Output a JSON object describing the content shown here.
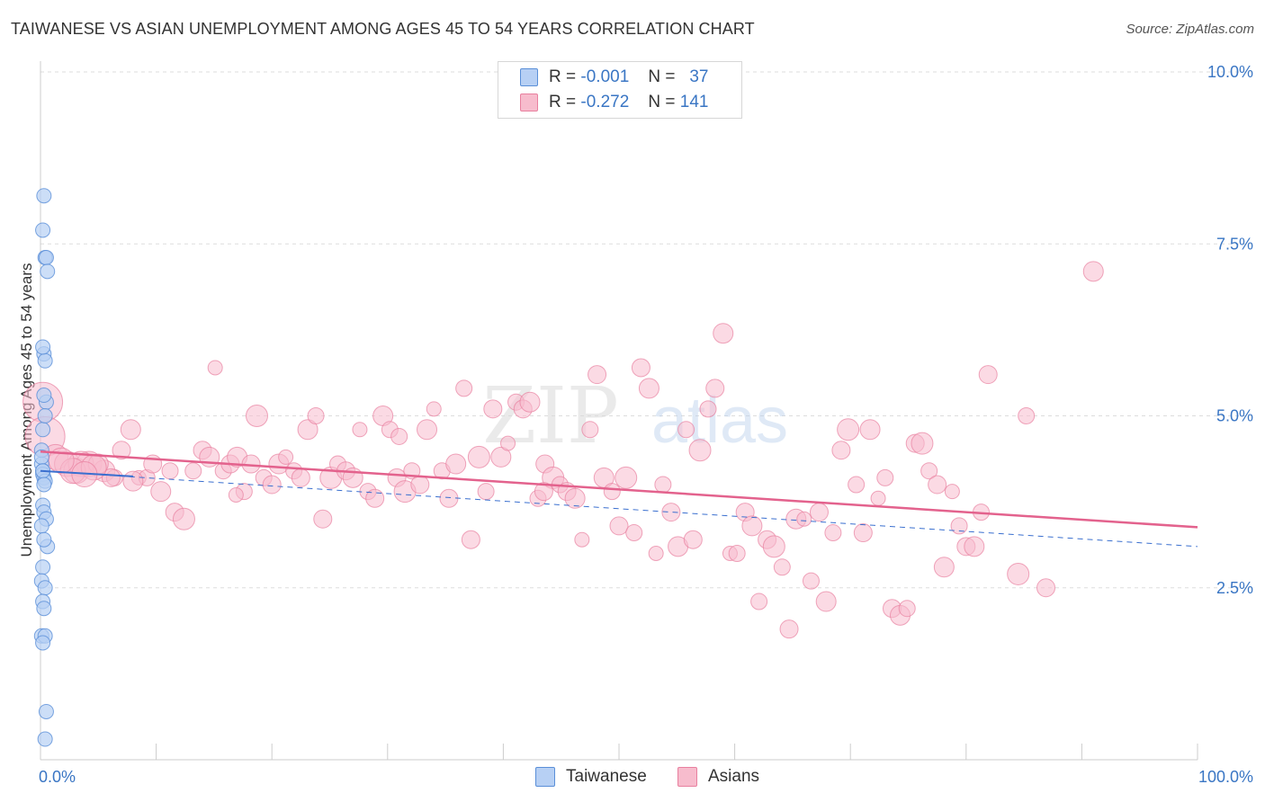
{
  "title": "TAIWANESE VS ASIAN UNEMPLOYMENT AMONG AGES 45 TO 54 YEARS CORRELATION CHART",
  "source": "Source: ZipAtlas.com",
  "watermark": {
    "zip": "ZIP",
    "atlas": "atlas"
  },
  "colors": {
    "taiwanese_fill": "#b7d0f4",
    "taiwanese_stroke": "#5a8fd8",
    "taiwanese_line": "#3a6fcf",
    "asians_fill": "#f7bccd",
    "asians_stroke": "#e8809f",
    "asians_line": "#e3628d",
    "tick_label": "#3a76c4",
    "grid": "#dddddd"
  },
  "legend": {
    "rows": [
      {
        "r_label": "R =",
        "r_value": "-0.001",
        "n_label": "N =",
        "n_value": "37"
      },
      {
        "r_label": "R =",
        "r_value": "-0.272",
        "n_label": "N =",
        "n_value": "141"
      }
    ]
  },
  "chart_data": {
    "type": "scatter",
    "xlabel": "",
    "ylabel": "Unemployment Among Ages 45 to 54 years",
    "xlim": [
      0,
      100
    ],
    "ylim": [
      0,
      10.0
    ],
    "x_tick_labels": [
      "0.0%",
      "100.0%"
    ],
    "y_ticks": [
      2.5,
      5.0,
      7.5,
      10.0
    ],
    "y_tick_labels": [
      "2.5%",
      "5.0%",
      "7.5%",
      "10.0%"
    ],
    "grid": true,
    "legend_position": "bottom",
    "series": [
      {
        "name": "Taiwanese",
        "r": -0.001,
        "n": 37,
        "trend": {
          "x": [
            0,
            100
          ],
          "y": [
            4.2,
            3.1
          ]
        },
        "points": [
          [
            0.1,
            4.3
          ],
          [
            0.2,
            4.2
          ],
          [
            0.3,
            5.9
          ],
          [
            0.4,
            5.8
          ],
          [
            0.5,
            5.2
          ],
          [
            0.2,
            4.8
          ],
          [
            0.1,
            4.5
          ],
          [
            0.3,
            8.2
          ],
          [
            0.2,
            7.7
          ],
          [
            0.4,
            7.3
          ],
          [
            0.5,
            7.3
          ],
          [
            0.6,
            7.1
          ],
          [
            0.2,
            6.0
          ],
          [
            0.3,
            5.3
          ],
          [
            0.4,
            5.0
          ],
          [
            0.1,
            4.4
          ],
          [
            0.2,
            4.15
          ],
          [
            0.3,
            4.1
          ],
          [
            0.4,
            4.05
          ],
          [
            0.2,
            3.7
          ],
          [
            0.3,
            3.6
          ],
          [
            0.5,
            3.5
          ],
          [
            0.6,
            3.1
          ],
          [
            0.1,
            3.4
          ],
          [
            0.3,
            3.2
          ],
          [
            0.2,
            2.8
          ],
          [
            0.1,
            2.6
          ],
          [
            0.4,
            2.5
          ],
          [
            0.2,
            2.3
          ],
          [
            0.3,
            2.2
          ],
          [
            0.1,
            1.8
          ],
          [
            0.4,
            1.8
          ],
          [
            0.2,
            1.7
          ],
          [
            0.5,
            0.7
          ],
          [
            0.4,
            0.3
          ],
          [
            0.2,
            4.2
          ],
          [
            0.3,
            4.0
          ]
        ]
      },
      {
        "name": "Asians",
        "r": -0.272,
        "n": 141,
        "trend": {
          "x": [
            0,
            100
          ],
          "y": [
            4.48,
            3.38
          ]
        },
        "points": [
          [
            0.2,
            5.2
          ],
          [
            0.4,
            4.7
          ],
          [
            1.3,
            4.4
          ],
          [
            2.3,
            4.3
          ],
          [
            3.1,
            4.2
          ],
          [
            4.2,
            4.3
          ],
          [
            5.5,
            4.2
          ],
          [
            6.4,
            4.1
          ],
          [
            7.0,
            4.5
          ],
          [
            7.8,
            4.8
          ],
          [
            8.5,
            4.1
          ],
          [
            9.2,
            4.1
          ],
          [
            9.7,
            4.3
          ],
          [
            10.4,
            3.9
          ],
          [
            11.2,
            4.2
          ],
          [
            11.6,
            3.6
          ],
          [
            12.4,
            3.5
          ],
          [
            13.2,
            4.2
          ],
          [
            14.0,
            4.5
          ],
          [
            14.6,
            4.4
          ],
          [
            15.1,
            5.7
          ],
          [
            15.8,
            4.2
          ],
          [
            16.4,
            4.3
          ],
          [
            17.0,
            4.4
          ],
          [
            17.6,
            3.9
          ],
          [
            18.2,
            4.3
          ],
          [
            18.7,
            5.0
          ],
          [
            19.3,
            4.1
          ],
          [
            20.0,
            4.0
          ],
          [
            20.6,
            4.3
          ],
          [
            21.2,
            4.4
          ],
          [
            21.9,
            4.2
          ],
          [
            22.5,
            4.1
          ],
          [
            23.1,
            4.8
          ],
          [
            23.8,
            5.0
          ],
          [
            24.4,
            3.5
          ],
          [
            25.1,
            4.1
          ],
          [
            25.7,
            4.3
          ],
          [
            26.4,
            4.2
          ],
          [
            27.0,
            4.1
          ],
          [
            27.6,
            4.8
          ],
          [
            28.3,
            3.9
          ],
          [
            28.9,
            3.8
          ],
          [
            29.6,
            5.0
          ],
          [
            30.2,
            4.8
          ],
          [
            30.8,
            4.1
          ],
          [
            31.5,
            3.9
          ],
          [
            32.1,
            4.2
          ],
          [
            32.8,
            4.0
          ],
          [
            33.4,
            4.8
          ],
          [
            34.0,
            5.1
          ],
          [
            34.7,
            4.2
          ],
          [
            35.3,
            3.8
          ],
          [
            35.9,
            4.3
          ],
          [
            36.6,
            5.4
          ],
          [
            37.2,
            3.2
          ],
          [
            37.9,
            4.4
          ],
          [
            38.5,
            3.9
          ],
          [
            39.1,
            5.1
          ],
          [
            39.8,
            4.4
          ],
          [
            40.4,
            4.6
          ],
          [
            41.1,
            5.2
          ],
          [
            41.7,
            5.1
          ],
          [
            42.3,
            5.2
          ],
          [
            43.0,
            3.8
          ],
          [
            43.6,
            4.3
          ],
          [
            44.3,
            4.1
          ],
          [
            44.9,
            4.0
          ],
          [
            45.5,
            3.9
          ],
          [
            46.2,
            3.8
          ],
          [
            46.8,
            3.2
          ],
          [
            47.5,
            4.8
          ],
          [
            48.1,
            5.6
          ],
          [
            48.7,
            4.1
          ],
          [
            49.4,
            3.9
          ],
          [
            50.0,
            3.4
          ],
          [
            50.6,
            4.1
          ],
          [
            51.3,
            3.3
          ],
          [
            51.9,
            5.7
          ],
          [
            52.6,
            5.4
          ],
          [
            53.2,
            3.0
          ],
          [
            53.8,
            4.0
          ],
          [
            54.5,
            3.6
          ],
          [
            55.1,
            3.1
          ],
          [
            55.8,
            4.8
          ],
          [
            56.4,
            3.2
          ],
          [
            57.0,
            4.5
          ],
          [
            57.7,
            5.1
          ],
          [
            58.3,
            5.4
          ],
          [
            59.0,
            6.2
          ],
          [
            59.6,
            3.0
          ],
          [
            60.2,
            3.0
          ],
          [
            60.9,
            3.6
          ],
          [
            61.5,
            3.4
          ],
          [
            62.1,
            2.3
          ],
          [
            62.8,
            3.2
          ],
          [
            63.4,
            3.1
          ],
          [
            64.1,
            2.8
          ],
          [
            64.7,
            1.9
          ],
          [
            65.3,
            3.5
          ],
          [
            66.0,
            3.5
          ],
          [
            66.6,
            2.6
          ],
          [
            67.3,
            3.6
          ],
          [
            67.9,
            2.3
          ],
          [
            68.5,
            3.3
          ],
          [
            69.2,
            4.5
          ],
          [
            69.8,
            4.8
          ],
          [
            70.5,
            4.0
          ],
          [
            71.1,
            3.3
          ],
          [
            71.7,
            4.8
          ],
          [
            72.4,
            3.8
          ],
          [
            73.0,
            4.1
          ],
          [
            73.6,
            2.2
          ],
          [
            74.3,
            2.1
          ],
          [
            74.9,
            2.2
          ],
          [
            75.6,
            4.6
          ],
          [
            76.2,
            4.6
          ],
          [
            76.8,
            4.2
          ],
          [
            77.5,
            4.0
          ],
          [
            78.1,
            2.8
          ],
          [
            78.8,
            3.9
          ],
          [
            79.4,
            3.4
          ],
          [
            80.0,
            3.1
          ],
          [
            80.7,
            3.1
          ],
          [
            81.3,
            3.6
          ],
          [
            81.9,
            5.6
          ],
          [
            84.5,
            2.7
          ],
          [
            85.2,
            5.0
          ],
          [
            86.9,
            2.5
          ],
          [
            91.0,
            7.1
          ],
          [
            3.5,
            4.3
          ],
          [
            2.8,
            4.2
          ],
          [
            6.1,
            4.1
          ],
          [
            5.0,
            4.3
          ],
          [
            31.0,
            4.7
          ],
          [
            43.5,
            3.9
          ],
          [
            4.6,
            4.25
          ],
          [
            1.8,
            4.35
          ],
          [
            3.8,
            4.15
          ],
          [
            8.0,
            4.05
          ],
          [
            16.9,
            3.85
          ]
        ]
      }
    ]
  }
}
